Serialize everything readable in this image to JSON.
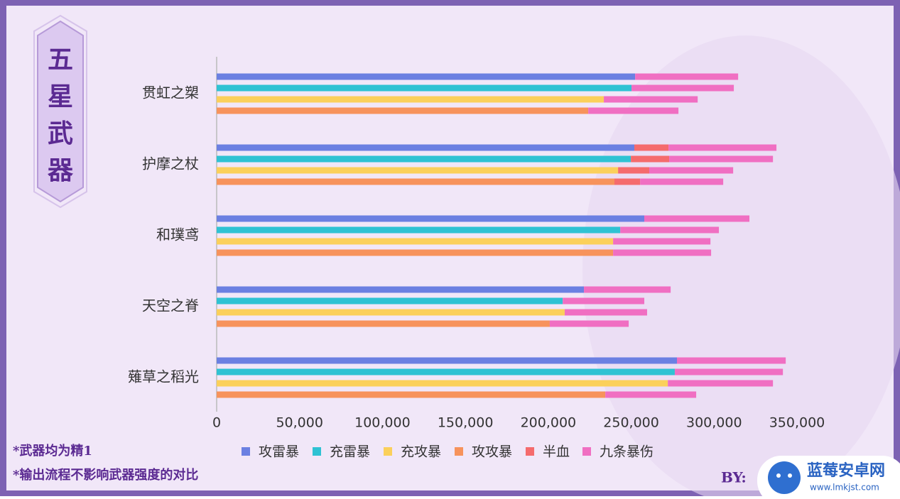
{
  "badge": "五星武器",
  "notes": [
    "*武器均为精1",
    "*输出流程不影响武器强度的对比"
  ],
  "by": "BY:",
  "watermark": {
    "name": "蓝莓安卓网",
    "url": "www.lmkjst.com"
  },
  "chart_data": {
    "type": "stacked-bar-h",
    "categories": [
      "贯虹之槊",
      "护摩之杖",
      "和璞鸢",
      "天空之脊",
      "薙草之稻光"
    ],
    "series": [
      {
        "name": "攻雷暴",
        "color": "#6b80e2",
        "values": [
          252400,
          251900,
          257900,
          221500,
          277600
        ]
      },
      {
        "name": "充雷暴",
        "color": "#2fc2d3",
        "values": [
          250200,
          249800,
          243400,
          208700,
          276300
        ]
      },
      {
        "name": "充攻暴",
        "color": "#fbd05b",
        "values": [
          233500,
          242100,
          239100,
          209900,
          272100
        ]
      },
      {
        "name": "攻攻暴",
        "color": "#f7935c",
        "values": [
          224100,
          239900,
          239100,
          200900,
          234400
        ]
      },
      {
        "name": "半血",
        "color": "#f56b6d",
        "values": [
          [
            0,
            0,
            0,
            0
          ],
          [
            20600,
            23100,
            18800,
            15500
          ],
          [
            0,
            0,
            0,
            0
          ],
          [
            0,
            0,
            0,
            0
          ],
          [
            0,
            0,
            0,
            0
          ]
        ]
      },
      {
        "name": "九条暴伤",
        "color": "#f06fc2",
        "values": [
          [
            62100,
            61700,
            56600,
            54400
          ],
          [
            65100,
            62600,
            50600,
            50100
          ],
          [
            63400,
            59500,
            58700,
            59100
          ],
          [
            52300,
            49200,
            49700,
            47600
          ],
          [
            65600,
            65200,
            63400,
            54800
          ]
        ]
      }
    ],
    "xlim": [
      0,
      350000
    ],
    "xticks": [
      0,
      {
        "value": 50000,
        "label": "50,000"
      },
      {
        "value": 100000,
        "label": "100,000"
      },
      {
        "value": 150000,
        "label": "150,000"
      },
      {
        "value": 200000,
        "label": "200,000"
      },
      {
        "value": 250000,
        "label": "250,000"
      },
      {
        "value": 300000,
        "label": "300,000"
      },
      {
        "value": 350000,
        "label": "350,000"
      }
    ],
    "legend": "bottom"
  }
}
